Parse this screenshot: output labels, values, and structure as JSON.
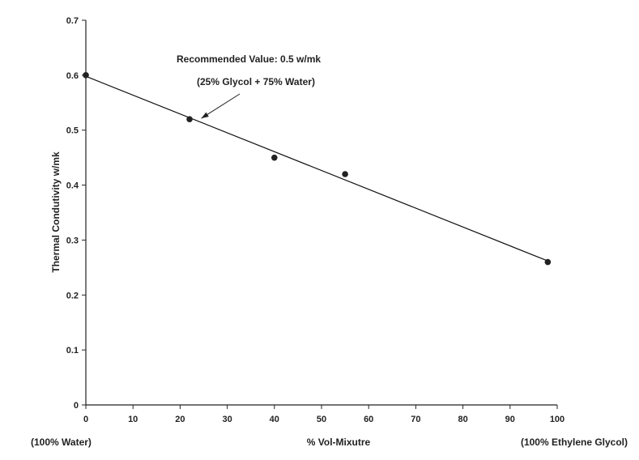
{
  "chart_data": {
    "type": "scatter",
    "xlabel": "% Vol-Mixutre",
    "ylabel": "Thermal Condutivity w/mk",
    "x_end_labels": {
      "left": "(100% Water)",
      "right": "(100% Ethylene Glycol)"
    },
    "xlim": [
      0,
      100
    ],
    "ylim": [
      0,
      0.7
    ],
    "x_ticks": [
      "0",
      "10",
      "20",
      "30",
      "40",
      "50",
      "60",
      "70",
      "80",
      "90",
      "100"
    ],
    "y_ticks": [
      "0",
      "0.1",
      "0.2",
      "0.3",
      "0.4",
      "0.5",
      "0.6",
      "0.7"
    ],
    "grid": false,
    "series": [
      {
        "x": [
          0,
          22,
          40,
          55,
          98
        ],
        "y": [
          0.6,
          0.52,
          0.45,
          0.42,
          0.26
        ]
      }
    ],
    "trendline": {
      "x": [
        0,
        98
      ],
      "y": [
        0.598,
        0.262
      ]
    },
    "annotation": {
      "line1": "Recommended Value: 0.5 w/mk",
      "line2": "(25% Glycol + 75% Water)",
      "arrow_to": {
        "x": 25,
        "y": 0.52
      }
    }
  }
}
